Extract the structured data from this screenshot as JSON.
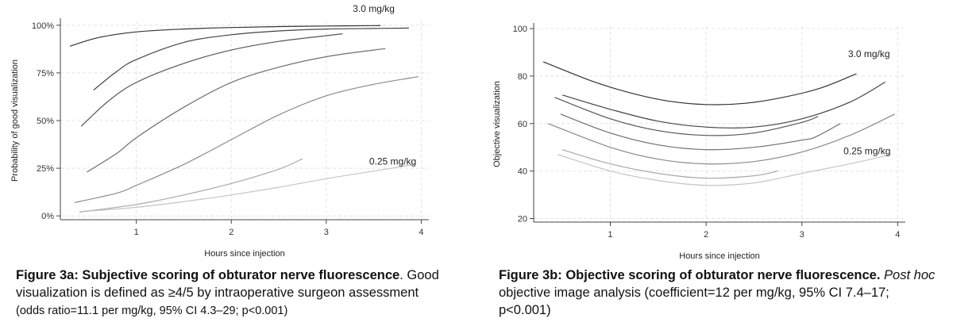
{
  "chart_data": [
    {
      "type": "line",
      "xlabel": "Hours since injection",
      "ylabel": "Probability of good visualization",
      "xlim": [
        0.2,
        4.08
      ],
      "ylim": [
        -0.02,
        1.02
      ],
      "xticks": [
        1,
        2,
        3,
        4
      ],
      "xtick_labels": [
        "1",
        "2",
        "3",
        "4"
      ],
      "yticks": [
        0,
        0.25,
        0.5,
        0.75,
        1.0
      ],
      "ytick_labels": [
        "0%",
        "25%",
        "50%",
        "75%",
        "100%"
      ],
      "grid": true,
      "annotations": [
        {
          "text": "3.0 mg/kg",
          "x": 3.5,
          "y": 1.07
        },
        {
          "text": "0.25 mg/kg",
          "x": 3.7,
          "y": 0.27
        }
      ],
      "series": [
        {
          "color": "#333333",
          "x": [
            0.3,
            0.6,
            1.0,
            1.5,
            2.0,
            2.5,
            3.0,
            3.5,
            3.57
          ],
          "y": [
            0.89,
            0.935,
            0.965,
            0.98,
            0.988,
            0.993,
            0.996,
            0.998,
            0.998
          ]
        },
        {
          "color": "#444444",
          "x": [
            0.55,
            0.8,
            1.0,
            1.5,
            2.0,
            2.5,
            3.0,
            3.5,
            3.87
          ],
          "y": [
            0.66,
            0.76,
            0.82,
            0.91,
            0.95,
            0.97,
            0.98,
            0.983,
            0.985
          ]
        },
        {
          "color": "#555555",
          "x": [
            0.42,
            0.7,
            1.0,
            1.5,
            2.0,
            2.5,
            3.0,
            3.17
          ],
          "y": [
            0.47,
            0.6,
            0.7,
            0.8,
            0.87,
            0.915,
            0.945,
            0.955
          ]
        },
        {
          "color": "#6e6e6e",
          "x": [
            0.48,
            0.8,
            1.0,
            1.5,
            2.0,
            2.5,
            3.0,
            3.5,
            3.62
          ],
          "y": [
            0.23,
            0.33,
            0.41,
            0.57,
            0.7,
            0.78,
            0.835,
            0.87,
            0.877
          ]
        },
        {
          "color": "#8a8a8a",
          "x": [
            0.35,
            0.8,
            1.0,
            1.5,
            2.0,
            2.5,
            3.0,
            3.5,
            3.97
          ],
          "y": [
            0.07,
            0.12,
            0.16,
            0.27,
            0.4,
            0.53,
            0.63,
            0.69,
            0.73
          ]
        },
        {
          "color": "#a8a8a8",
          "x": [
            0.4,
            1.0,
            1.5,
            2.0,
            2.5,
            2.75
          ],
          "y": [
            0.02,
            0.06,
            0.11,
            0.17,
            0.245,
            0.3
          ]
        },
        {
          "color": "#c4c4c4",
          "x": [
            0.5,
            1.0,
            1.5,
            2.0,
            2.5,
            3.0,
            3.5,
            3.93
          ],
          "y": [
            0.025,
            0.045,
            0.075,
            0.11,
            0.15,
            0.195,
            0.235,
            0.27
          ]
        }
      ]
    },
    {
      "type": "line",
      "xlabel": "Hours since injection",
      "ylabel": "Objective visualization",
      "xlim": [
        0.2,
        4.08
      ],
      "ylim": [
        18.5,
        101
      ],
      "xticks": [
        1,
        2,
        3,
        4
      ],
      "xtick_labels": [
        "1",
        "2",
        "3",
        "4"
      ],
      "yticks": [
        20,
        40,
        60,
        80,
        100
      ],
      "ytick_labels": [
        "20",
        "40",
        "60",
        "80",
        "100"
      ],
      "grid": true,
      "annotations": [
        {
          "text": "3.0 mg/kg",
          "x": 3.7,
          "y": 88
        },
        {
          "text": "0.25 mg/kg",
          "x": 3.68,
          "y": 47
        }
      ],
      "series": [
        {
          "color": "#333333",
          "x": [
            0.3,
            0.8,
            1.2,
            1.6,
            2.0,
            2.4,
            2.8,
            3.2,
            3.57
          ],
          "y": [
            86,
            78,
            73,
            69.5,
            68,
            68.5,
            71,
            75,
            81
          ]
        },
        {
          "color": "#444444",
          "x": [
            0.5,
            1.0,
            1.5,
            2.0,
            2.5,
            3.0,
            3.5,
            3.87
          ],
          "y": [
            72,
            66,
            61,
            58.5,
            58.5,
            62,
            69,
            77.5
          ]
        },
        {
          "color": "#555555",
          "x": [
            0.42,
            1.0,
            1.5,
            2.0,
            2.5,
            3.0,
            3.17
          ],
          "y": [
            71,
            62,
            57,
            55,
            56,
            60.5,
            63
          ]
        },
        {
          "color": "#6e6e6e",
          "x": [
            0.48,
            1.0,
            1.5,
            2.0,
            2.5,
            3.0,
            3.15,
            3.4
          ],
          "y": [
            64,
            56,
            51,
            49,
            50,
            53,
            54.5,
            60
          ]
        },
        {
          "color": "#8a8a8a",
          "x": [
            0.35,
            1.0,
            1.5,
            2.0,
            2.5,
            3.0,
            3.5,
            3.97
          ],
          "y": [
            60,
            50,
            45,
            43,
            44,
            48,
            55,
            64
          ]
        },
        {
          "color": "#a8a8a8",
          "x": [
            0.5,
            1.0,
            1.5,
            2.0,
            2.5,
            2.75
          ],
          "y": [
            49,
            43,
            39,
            37,
            38,
            40
          ]
        },
        {
          "color": "#c4c4c4",
          "x": [
            0.45,
            1.0,
            1.5,
            2.0,
            2.5,
            3.0,
            3.5,
            3.93
          ],
          "y": [
            47,
            40,
            36,
            34,
            35,
            39,
            43,
            47
          ]
        }
      ]
    }
  ],
  "captions": {
    "a": {
      "bold": "Figure 3a: Subjective scoring of obturator nerve fluorescence",
      "text": ". Good visualization is defined as ≥4/5 by intraoperative surgeon assessment",
      "small": "(odds ratio=11.1 per mg/kg, 95% CI 4.3–29; p<0.001)"
    },
    "b": {
      "bold": "Figure 3b: Objective scoring of obturator nerve fluorescence.",
      "italic": "Post hoc",
      "text": " objective image analysis (coefficient=12 per mg/kg, 95% CI 7.4–17; p<0.001)"
    }
  }
}
